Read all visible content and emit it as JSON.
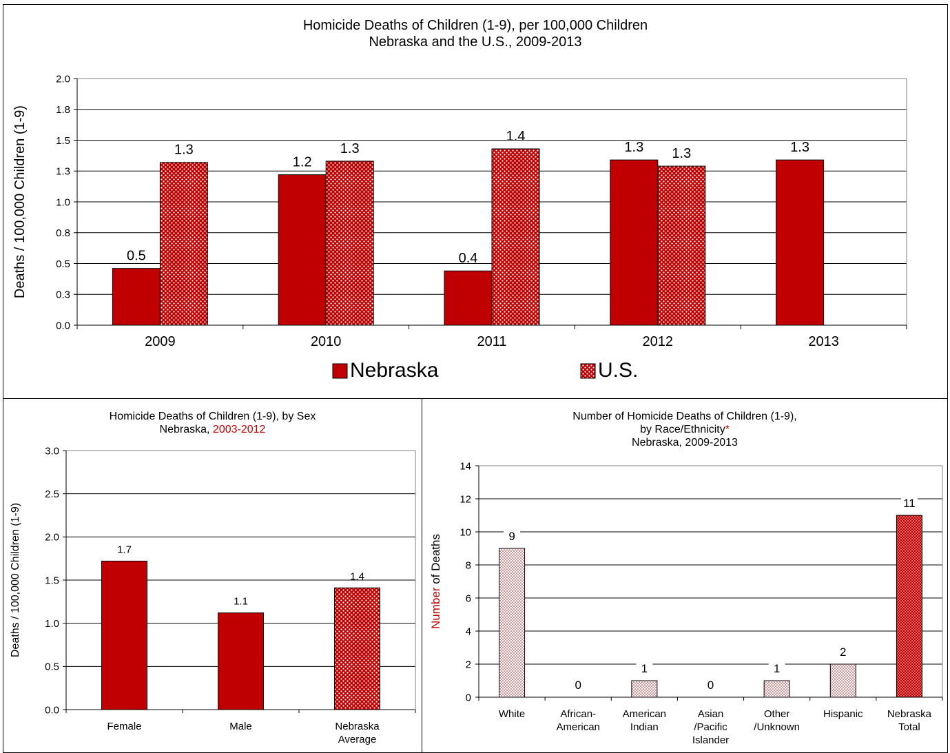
{
  "chart_data": [
    {
      "type": "bar",
      "title_line1": "Homicide Deaths of Children (1-9), per 100,000 Children",
      "title_line2": "Nebraska and the U.S., 2009-2013",
      "ylabel": "Deaths / 100,000 Children (1-9)",
      "xlabel": "",
      "categories": [
        "2009",
        "2010",
        "2011",
        "2012",
        "2013"
      ],
      "yticks": [
        "0.0",
        "0.3",
        "0.5",
        "0.8",
        "1.0",
        "1.3",
        "1.5",
        "1.8",
        "2.0"
      ],
      "ylim": [
        0,
        2.0
      ],
      "grid": true,
      "legend_position": "bottom",
      "series": [
        {
          "name": "Nebraska",
          "values": [
            0.46,
            1.22,
            0.44,
            1.34,
            1.34
          ],
          "labels": [
            "0.5",
            "1.2",
            "0.4",
            "1.3",
            "1.3"
          ],
          "color": "#c00000",
          "pattern": "solid"
        },
        {
          "name": "U.S.",
          "values": [
            1.32,
            1.33,
            1.43,
            1.29,
            null
          ],
          "labels": [
            "1.3",
            "1.3",
            "1.4",
            "1.3",
            ""
          ],
          "color": "#c00000",
          "pattern": "dots"
        }
      ]
    },
    {
      "type": "bar",
      "title_line1": "Homicide Deaths of Children (1-9), by Sex",
      "title_line2_prefix": "Nebraska, ",
      "title_line2_highlight": "2003-2012",
      "highlight_color": "#c00000",
      "ylabel": "Deaths / 100,000 Children (1-9)",
      "categories": [
        "Female",
        "Male",
        "Nebraska|Average"
      ],
      "values": [
        1.72,
        1.12,
        1.41
      ],
      "labels": [
        "1.7",
        "1.1",
        "1.4"
      ],
      "patterns": [
        "solid",
        "solid",
        "dots"
      ],
      "color": "#c00000",
      "yticks": [
        "0.0",
        "0.5",
        "1.0",
        "1.5",
        "2.0",
        "2.5",
        "3.0"
      ],
      "ylim": [
        0,
        3.0
      ],
      "grid": true
    },
    {
      "type": "bar",
      "title_line1": "Number of Homicide Deaths of Children (1-9),",
      "title_line2": "by Race/Ethnicity",
      "title_line2_mark": "*",
      "title_line3": "Nebraska, 2009-2013",
      "ylabel_highlight": "Number",
      "ylabel_rest": " of Deaths",
      "highlight_color": "#c00000",
      "categories": [
        "White",
        "African-|American",
        "American|Indian",
        "Asian|/Pacific|Islander",
        "Other|/Unknown",
        "Hispanic",
        "Nebraska|Total"
      ],
      "values": [
        9,
        0,
        1,
        0,
        1,
        2,
        11
      ],
      "labels": [
        "9",
        "0",
        "1",
        "0",
        "1",
        "2",
        "11"
      ],
      "patterns": [
        "light",
        "light",
        "light",
        "light",
        "light",
        "light",
        "dark"
      ],
      "color": "#c00000",
      "yticks": [
        "0",
        "2",
        "4",
        "6",
        "8",
        "10",
        "12",
        "14"
      ],
      "ylim": [
        0,
        14
      ],
      "grid": true
    }
  ]
}
